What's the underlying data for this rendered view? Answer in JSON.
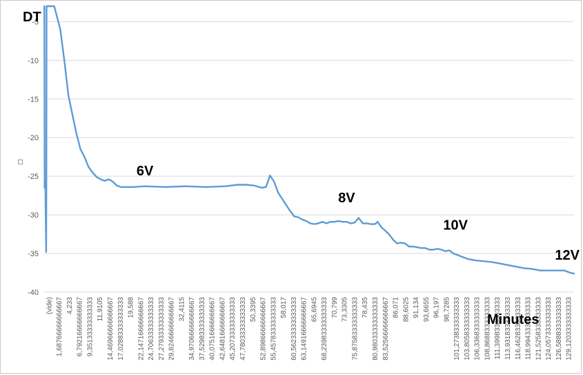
{
  "chart_data": {
    "type": "line",
    "ylabel": "DT",
    "xlabel": "Minutes",
    "ylim": [
      -40,
      -3
    ],
    "yticks": [
      -5,
      -10,
      -15,
      -20,
      -25,
      -30,
      -35,
      -40
    ],
    "grid": "horizontal",
    "line_color": "#5b9bd5",
    "categories": [
      "(vide)",
      "1,68766666666667",
      "4,233",
      "6,79216666666667",
      "9,35133333333333",
      "11,9105",
      "14,46966666666667",
      "17,02883333333333",
      "19,588",
      "22,14716666666667",
      "24,70633333333333",
      "27,27933333333333",
      "29,82466666666667",
      "32,4115",
      "34,97066666666667",
      "37,52983333333333",
      "40,07516666666667",
      "42,64816666666667",
      "45,20733333333333",
      "47,78033333333333",
      "50,3395",
      "52,89866666666667",
      "55,45783333333333",
      "58,017",
      "60,56233333333333",
      "63,14916666666667",
      "65,6945",
      "68,23983333333333",
      "70,799",
      "73,3305",
      "75,87583333333333",
      "78,435",
      "80,98033333333333",
      "83,52566666666667",
      "86,071",
      "88,6025",
      "91,134",
      "93,6655",
      "96,197",
      "98,7285",
      "101,2738333333333",
      "103,8058333333333",
      "106,3368333333333",
      "108,8688333333333",
      "111,3998333333333",
      "113,9318333333333",
      "116,4628333333333",
      "118,9943333333333",
      "121,5258333333333",
      "124,0573333333333",
      "126,5888333333333",
      "129,1203333333333"
    ],
    "series": [
      {
        "x": [
          0,
          0.05,
          0.12,
          0.2,
          0.3,
          0.4,
          0.5,
          0.55,
          0.6,
          0.7,
          0.8,
          1.0,
          1.5,
          2.5,
          4,
          5,
          6,
          7,
          8,
          9,
          10,
          11,
          12,
          13,
          14,
          15,
          16,
          17,
          18,
          19,
          20,
          22,
          25,
          30,
          35,
          40,
          45,
          48,
          50,
          52,
          54,
          55,
          56,
          57,
          58,
          59,
          60,
          61,
          62,
          63,
          64,
          65,
          66,
          67,
          68,
          69,
          70,
          71,
          72,
          73,
          74,
          75,
          76,
          77,
          78,
          79,
          80,
          81,
          82,
          82.7,
          83.6,
          84.5,
          85.5,
          86.5,
          87.5,
          88.5,
          89.5,
          90.5,
          91.5,
          92.5,
          93.5,
          94.5,
          95.5,
          96.5,
          97.5,
          98.5,
          99.5,
          100.5,
          101.5,
          102.5,
          103.5,
          105,
          107,
          109,
          111,
          113,
          115,
          117,
          119,
          121,
          123,
          125,
          127,
          129,
          130.5,
          131.4
        ],
        "y": [
          -3.5,
          -3,
          -26.5,
          -25.5,
          -26.5,
          -30.5,
          -34.8,
          -26,
          -3,
          -3,
          -3,
          -3,
          -3,
          -3,
          -6,
          -10,
          -14.5,
          -17,
          -19.5,
          -21.5,
          -22.5,
          -23.8,
          -24.5,
          -25.1,
          -25.4,
          -25.6,
          -25.4,
          -25.7,
          -26.2,
          -26.4,
          -26.4,
          -26.4,
          -26.3,
          -26.4,
          -26.3,
          -26.4,
          -26.3,
          -26.1,
          -26.1,
          -26.2,
          -26.5,
          -26.4,
          -24.9,
          -25.7,
          -27.1,
          -27.9,
          -28.7,
          -29.5,
          -30.2,
          -30.3,
          -30.6,
          -30.8,
          -31.1,
          -31.2,
          -31.1,
          -30.9,
          -31.1,
          -30.9,
          -30.9,
          -30.8,
          -30.9,
          -30.9,
          -31.1,
          -31.0,
          -30.4,
          -31.1,
          -31.1,
          -31.2,
          -31.2,
          -30.9,
          -31.6,
          -32.0,
          -32.5,
          -33.2,
          -33.7,
          -33.6,
          -33.7,
          -34.1,
          -34.1,
          -34.2,
          -34.3,
          -34.3,
          -34.5,
          -34.5,
          -34.4,
          -34.5,
          -34.7,
          -34.6,
          -35.0,
          -35.2,
          -35.4,
          -35.7,
          -35.9,
          -36.0,
          -36.1,
          -36.3,
          -36.5,
          -36.7,
          -36.9,
          -37.0,
          -37.2,
          -37.2,
          -37.2,
          -37.2,
          -37.5,
          -37.6
        ]
      }
    ],
    "annotations": [
      {
        "text": "6V",
        "x": 25,
        "y": -24.9
      },
      {
        "text": "8V",
        "x": 75,
        "y": -28.4
      },
      {
        "text": "10V",
        "x": 102,
        "y": -31.9
      },
      {
        "text": "12V",
        "x": 131.5,
        "y": -35.8
      }
    ]
  }
}
